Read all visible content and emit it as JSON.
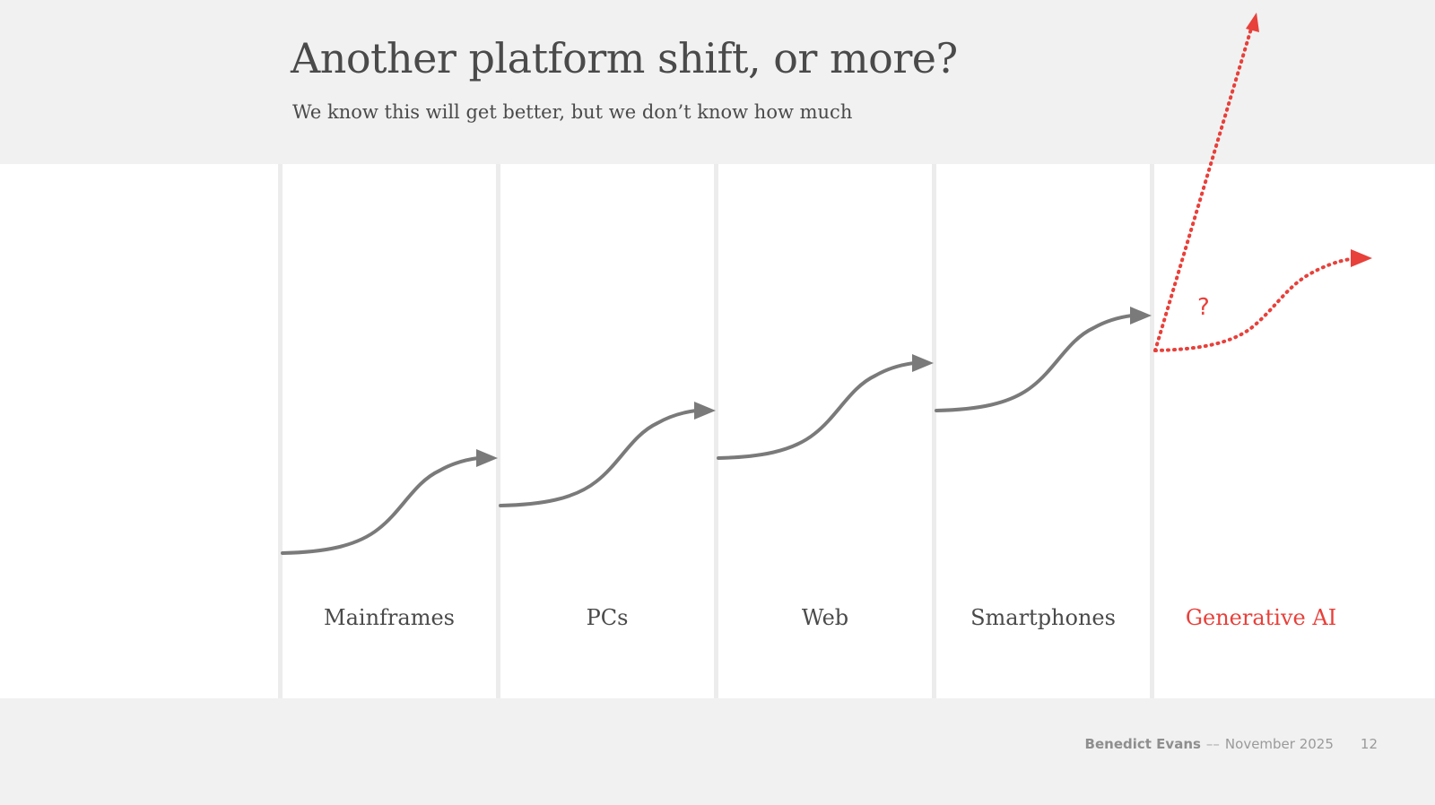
{
  "slide": {
    "title": "Another platform shift, or more?",
    "subtitle": "We know this will get better, but we don’t know how much"
  },
  "diagram": {
    "eras": [
      {
        "label": "Mainframes",
        "highlight": false
      },
      {
        "label": "PCs",
        "highlight": false
      },
      {
        "label": "Web",
        "highlight": false
      },
      {
        "label": "Smartphones",
        "highlight": false
      },
      {
        "label": "Generative AI",
        "highlight": true
      }
    ],
    "question_mark": "?",
    "colors": {
      "past_curve": "#7a7a7a",
      "future_curve": "#e8403a",
      "text": "#4a4a4a",
      "accent": "#e8403a"
    }
  },
  "footer": {
    "author": "Benedict Evans",
    "separator": "––",
    "date": "November 2025",
    "page_number": "12"
  }
}
